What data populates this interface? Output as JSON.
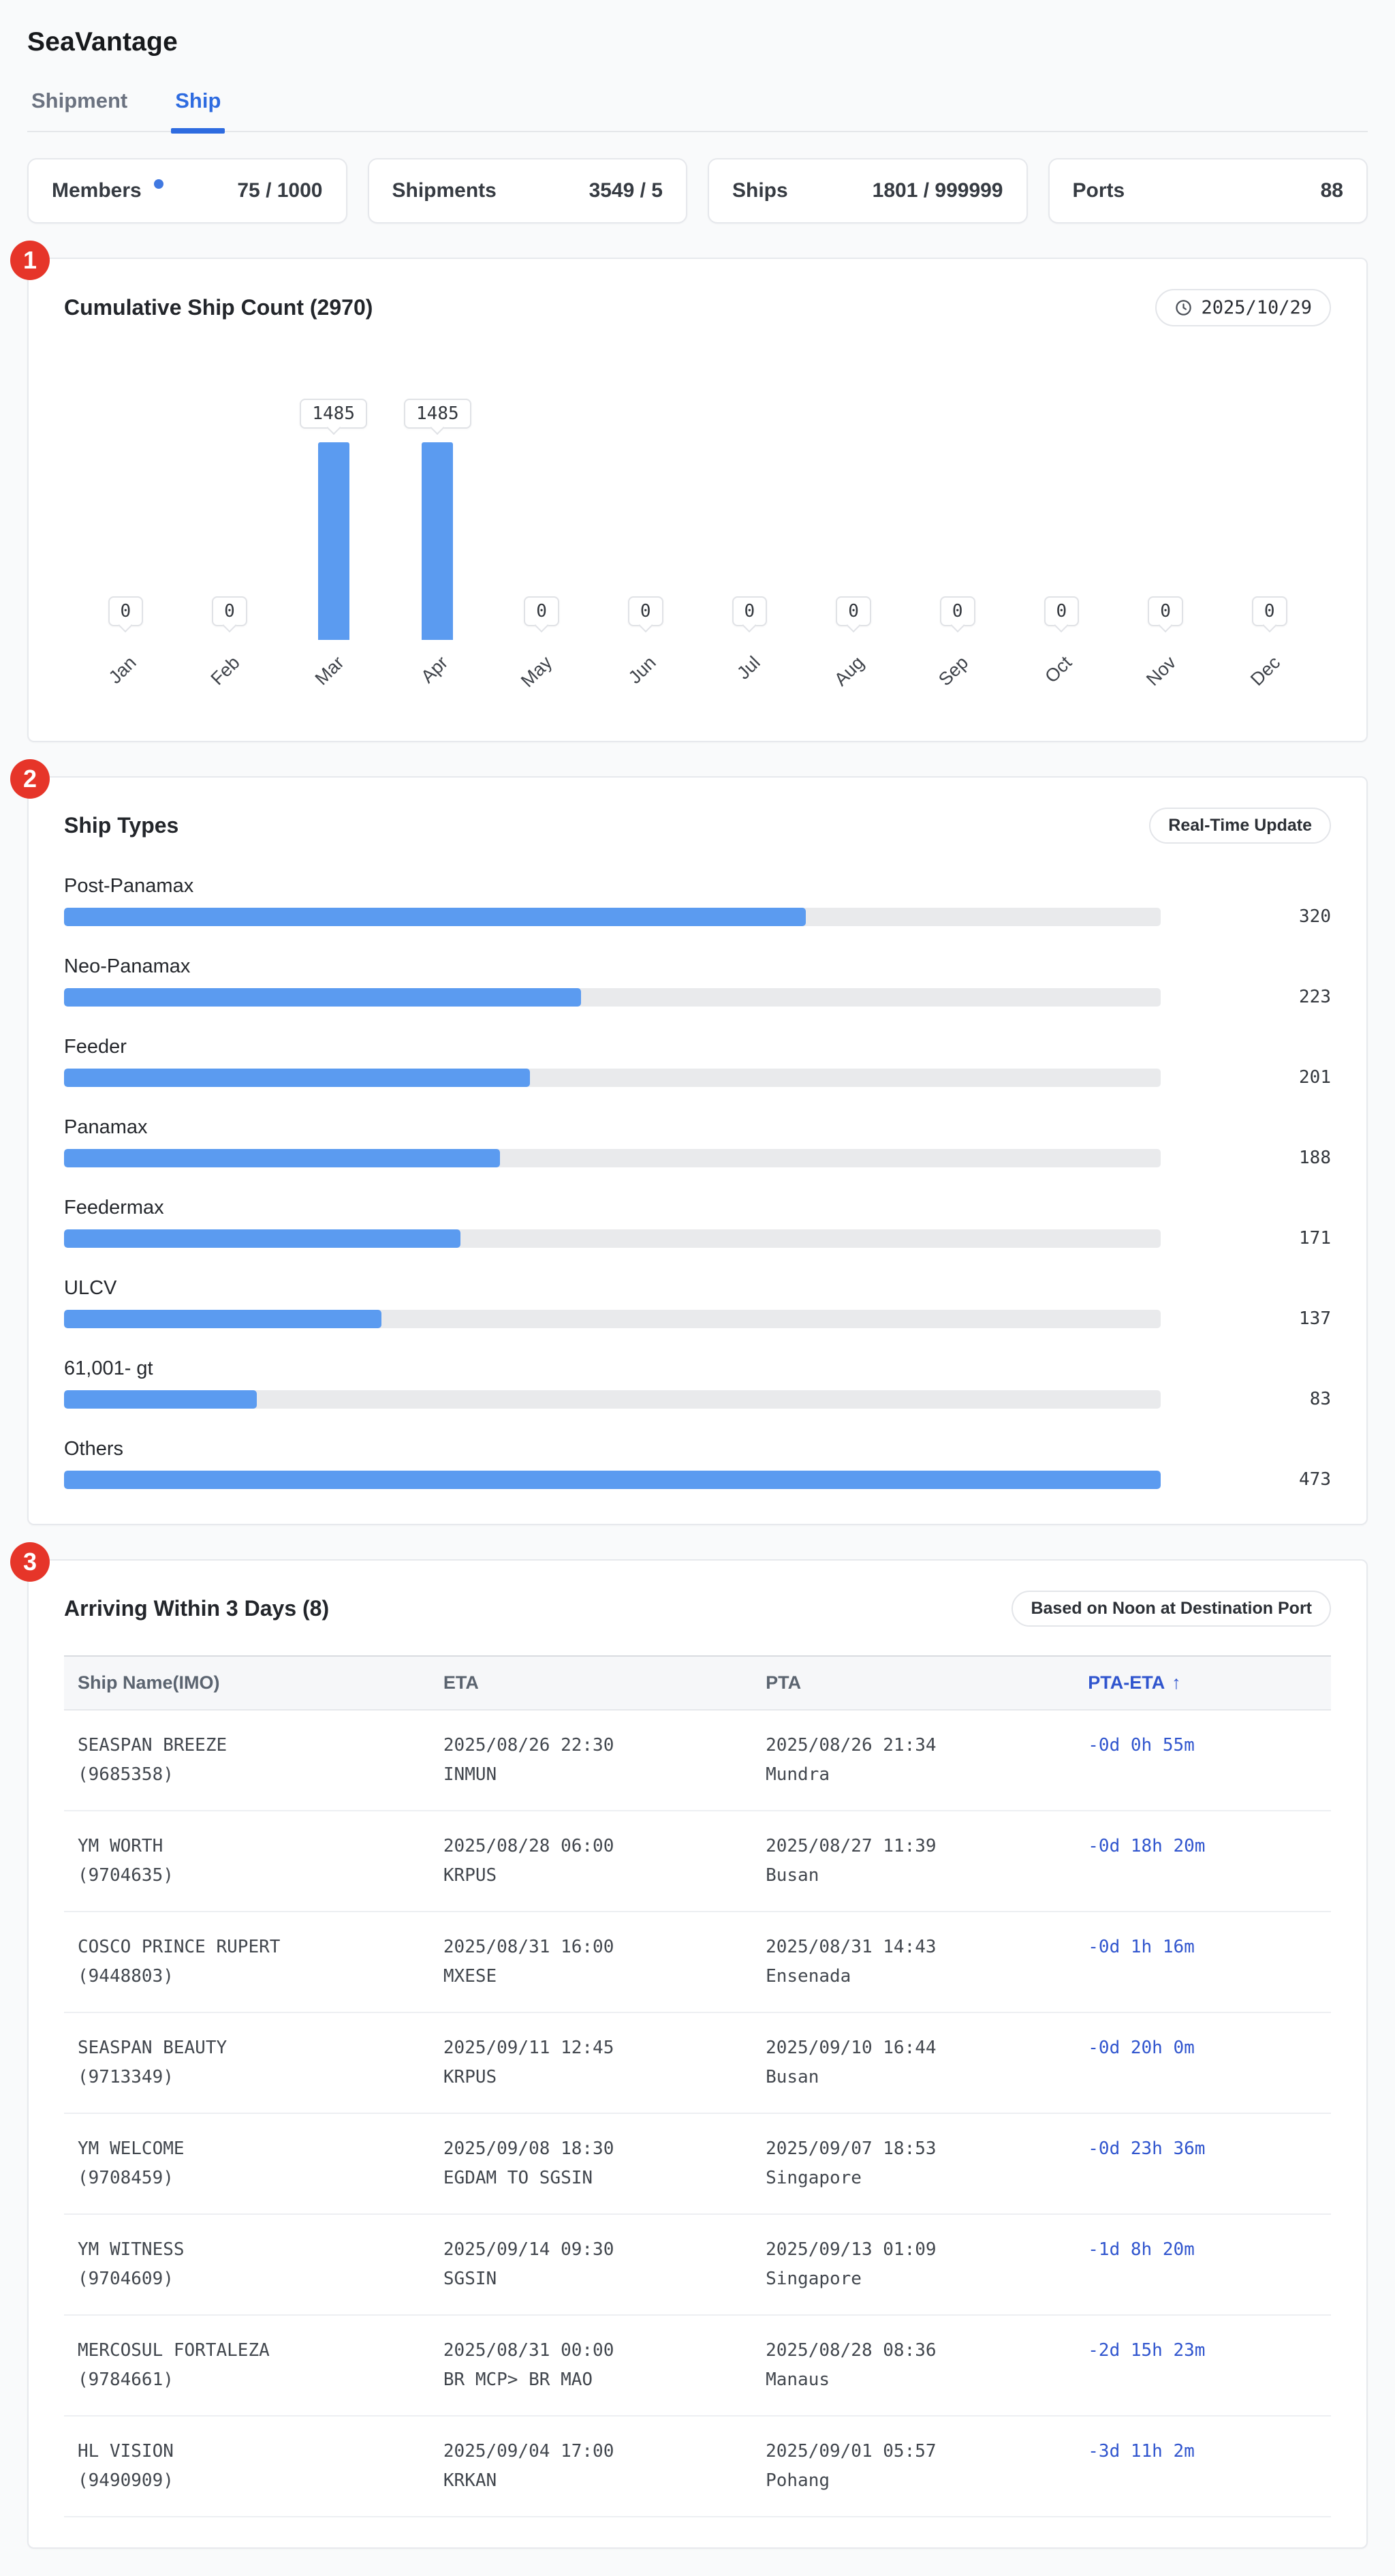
{
  "app": {
    "title": "SeaVantage"
  },
  "tabs": [
    {
      "label": "Shipment",
      "active": false
    },
    {
      "label": "Ship",
      "active": true
    }
  ],
  "stats": [
    {
      "label": "Members",
      "value": "75 / 1000",
      "dot": true
    },
    {
      "label": "Shipments",
      "value": "3549 / 5",
      "dot": false
    },
    {
      "label": "Ships",
      "value": "1801 / 999999",
      "dot": false
    },
    {
      "label": "Ports",
      "value": "88",
      "dot": false
    }
  ],
  "accent_colors": {
    "tab_blue": "#2e6be0",
    "bar_blue": "#5b9bf0",
    "table_blue": "#3055ce",
    "badge_red": "#e63529",
    "dot_blue": "#4179e1"
  },
  "cumulative": {
    "badge": "1",
    "title": "Cumulative Ship Count (2970)",
    "date_chip": "2025/10/29",
    "chart_data": {
      "type": "bar",
      "categories": [
        "Jan",
        "Feb",
        "Mar",
        "Apr",
        "May",
        "Jun",
        "Jul",
        "Aug",
        "Sep",
        "Oct",
        "Nov",
        "Dec"
      ],
      "values": [
        0,
        0,
        1485,
        1485,
        0,
        0,
        0,
        0,
        0,
        0,
        0,
        0
      ],
      "title": "Cumulative Ship Count (2970)",
      "xlabel": "",
      "ylabel": "",
      "ylim": [
        0,
        1485
      ],
      "data_labels": "tooltip-box-above-each-bar",
      "grid": false,
      "legend": "none"
    }
  },
  "ship_types": {
    "badge": "2",
    "title": "Ship Types",
    "chip": "Real-Time Update",
    "chart_data": {
      "type": "bar",
      "orientation": "horizontal",
      "categories": [
        "Post-Panamax",
        "Neo-Panamax",
        "Feeder",
        "Panamax",
        "Feedermax",
        "ULCV",
        "61,001- gt",
        "Others"
      ],
      "values": [
        320,
        223,
        201,
        188,
        171,
        137,
        83,
        473
      ],
      "max_scale": 473,
      "title": "Ship Types",
      "xlabel": "",
      "ylabel": "",
      "grid": false,
      "legend": "none"
    }
  },
  "arrivals": {
    "badge": "3",
    "title": "Arriving Within 3 Days (8)",
    "chip": "Based on Noon at Destination Port",
    "columns": [
      "Ship Name(IMO)",
      "ETA",
      "PTA",
      "PTA-ETA"
    ],
    "sort_indicator": "↑",
    "sorted_column": "PTA-ETA",
    "rows": [
      {
        "name": "SEASPAN BREEZE",
        "imo": "(9685358)",
        "eta_time": "2025/08/26 22:30",
        "eta_location": "INMUN",
        "pta_time": "2025/08/26 21:34",
        "pta_location": "Mundra",
        "pta_eta": "-0d 0h 55m"
      },
      {
        "name": "YM WORTH",
        "imo": "(9704635)",
        "eta_time": "2025/08/28 06:00",
        "eta_location": "KRPUS",
        "pta_time": "2025/08/27 11:39",
        "pta_location": "Busan",
        "pta_eta": "-0d 18h 20m"
      },
      {
        "name": "COSCO PRINCE RUPERT",
        "imo": "(9448803)",
        "eta_time": "2025/08/31 16:00",
        "eta_location": "MXESE",
        "pta_time": "2025/08/31 14:43",
        "pta_location": "Ensenada",
        "pta_eta": "-0d 1h 16m"
      },
      {
        "name": "SEASPAN BEAUTY",
        "imo": "(9713349)",
        "eta_time": "2025/09/11 12:45",
        "eta_location": "KRPUS",
        "pta_time": "2025/09/10 16:44",
        "pta_location": "Busan",
        "pta_eta": "-0d 20h 0m"
      },
      {
        "name": "YM WELCOME",
        "imo": "(9708459)",
        "eta_time": "2025/09/08 18:30",
        "eta_location": "EGDAM TO SGSIN",
        "pta_time": "2025/09/07 18:53",
        "pta_location": "Singapore",
        "pta_eta": "-0d 23h 36m"
      },
      {
        "name": "YM WITNESS",
        "imo": "(9704609)",
        "eta_time": "2025/09/14 09:30",
        "eta_location": "SGSIN",
        "pta_time": "2025/09/13 01:09",
        "pta_location": "Singapore",
        "pta_eta": "-1d 8h 20m"
      },
      {
        "name": "MERCOSUL FORTALEZA",
        "imo": "(9784661)",
        "eta_time": "2025/08/31 00:00",
        "eta_location": "BR MCP> BR MAO",
        "pta_time": "2025/08/28 08:36",
        "pta_location": "Manaus",
        "pta_eta": "-2d 15h 23m"
      },
      {
        "name": "HL VISION",
        "imo": "(9490909)",
        "eta_time": "2025/09/04 17:00",
        "eta_location": "KRKAN",
        "pta_time": "2025/09/01 05:57",
        "pta_location": "Pohang",
        "pta_eta": "-3d 11h 2m"
      }
    ]
  }
}
